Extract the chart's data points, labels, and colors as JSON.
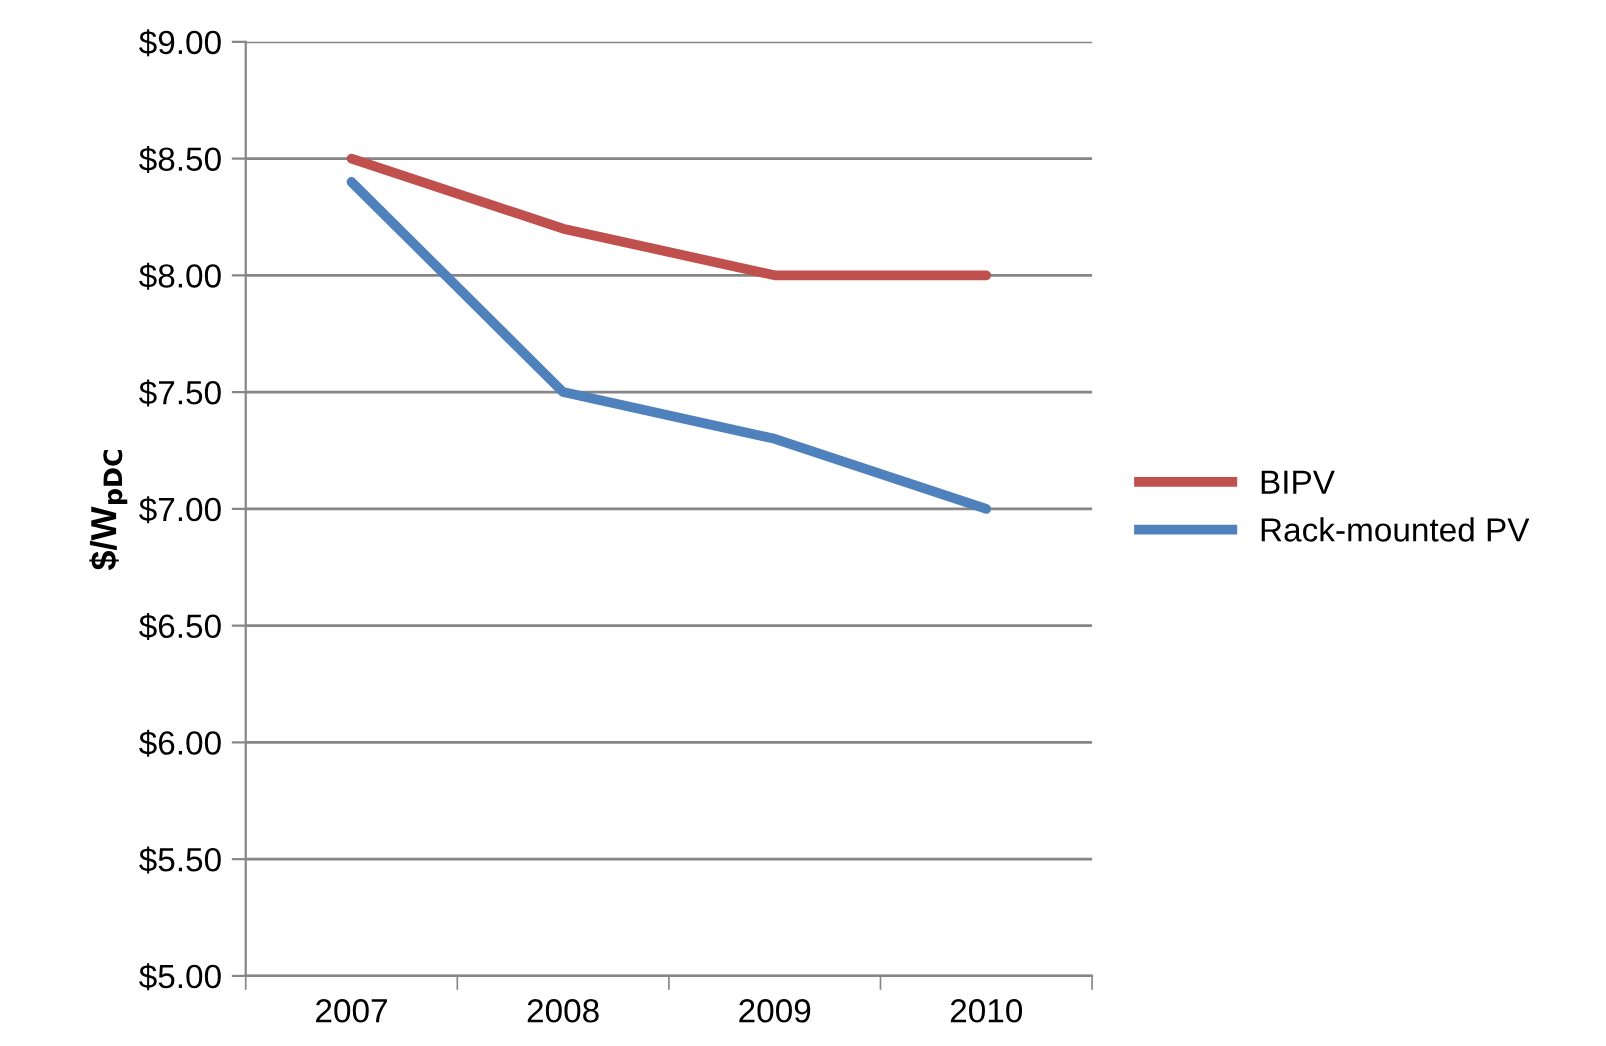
{
  "chart_data": {
    "type": "line",
    "ylabel": "$/W$_{pDC}$",
    "categories": [
      "2007",
      "2008",
      "2009",
      "2010"
    ],
    "series": [
      {
        "name": "BIPV",
        "color": "#c0504d",
        "values": [
          8.5,
          8.2,
          8.0,
          8.0
        ]
      },
      {
        "name": "Rack-mounted PV",
        "color": "#4f81bd",
        "values": [
          8.4,
          7.5,
          7.3,
          7.0
        ]
      }
    ],
    "ylim": [
      5,
      9
    ],
    "yticks": [
      {
        "value": 5,
        "label": "$5.00"
      },
      {
        "value": 5.5,
        "label": "$5.50"
      },
      {
        "value": 6,
        "label": "$6.00"
      },
      {
        "value": 6.5,
        "label": "$6.50"
      },
      {
        "value": 7,
        "label": "$7.00"
      },
      {
        "value": 7.5,
        "label": "$7.50"
      },
      {
        "value": 8,
        "label": "$8.00"
      },
      {
        "value": 8.5,
        "label": "$8.50"
      },
      {
        "value": 9,
        "label": "$9.00"
      }
    ],
    "grid": "y",
    "legend": "right",
    "marker": "none",
    "line_style": "solid"
  }
}
